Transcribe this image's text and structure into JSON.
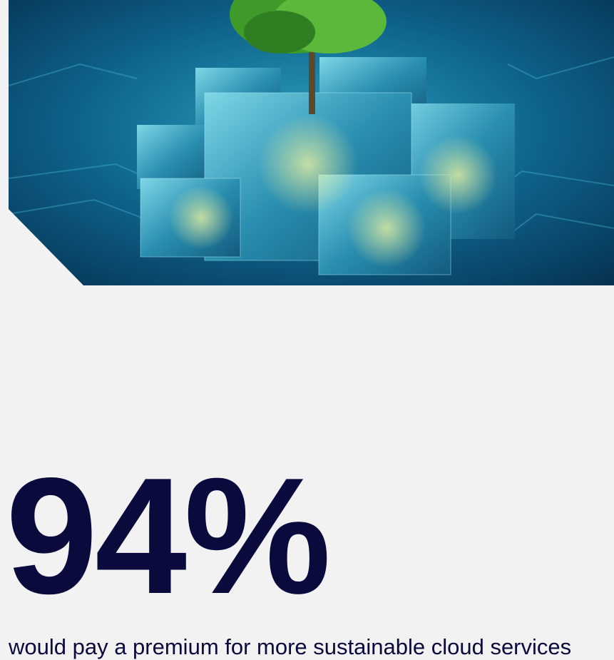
{
  "stat": {
    "value": "94%",
    "caption": "would pay a premium for more sustainable cloud services"
  }
}
